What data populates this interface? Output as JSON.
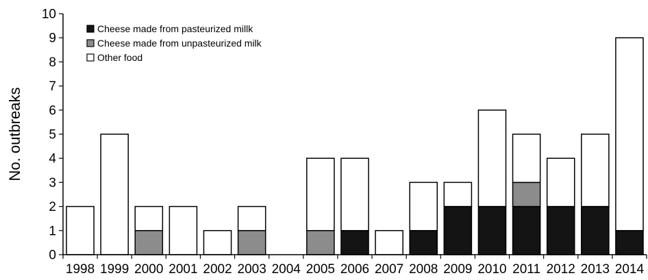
{
  "chart_data": {
    "type": "bar",
    "stacked": true,
    "title": "",
    "xlabel": "",
    "ylabel": "No. outbreaks",
    "ylim": [
      0,
      10
    ],
    "yticks": [
      0,
      1,
      2,
      3,
      4,
      5,
      6,
      7,
      8,
      9,
      10
    ],
    "grid": false,
    "legend_position": "top-left",
    "categories": [
      "1998",
      "1999",
      "2000",
      "2001",
      "2002",
      "2003",
      "2004",
      "2005",
      "2006",
      "2007",
      "2008",
      "2009",
      "2010",
      "2011",
      "2012",
      "2013",
      "2014"
    ],
    "series": [
      {
        "name": "Cheese made from pasteurized millk",
        "color": "#141414",
        "values": [
          0,
          0,
          0,
          0,
          0,
          0,
          0,
          0,
          1,
          0,
          1,
          2,
          2,
          2,
          2,
          2,
          1
        ]
      },
      {
        "name": "Cheese made from unpasteurized milk",
        "color": "#8c8c8c",
        "values": [
          0,
          0,
          1,
          0,
          0,
          1,
          0,
          1,
          0,
          0,
          0,
          0,
          0,
          1,
          0,
          0,
          0
        ]
      },
      {
        "name": "Other food",
        "color": "#ffffff",
        "values": [
          2,
          5,
          1,
          2,
          1,
          1,
          0,
          3,
          3,
          1,
          2,
          1,
          4,
          2,
          2,
          3,
          8
        ]
      }
    ]
  }
}
